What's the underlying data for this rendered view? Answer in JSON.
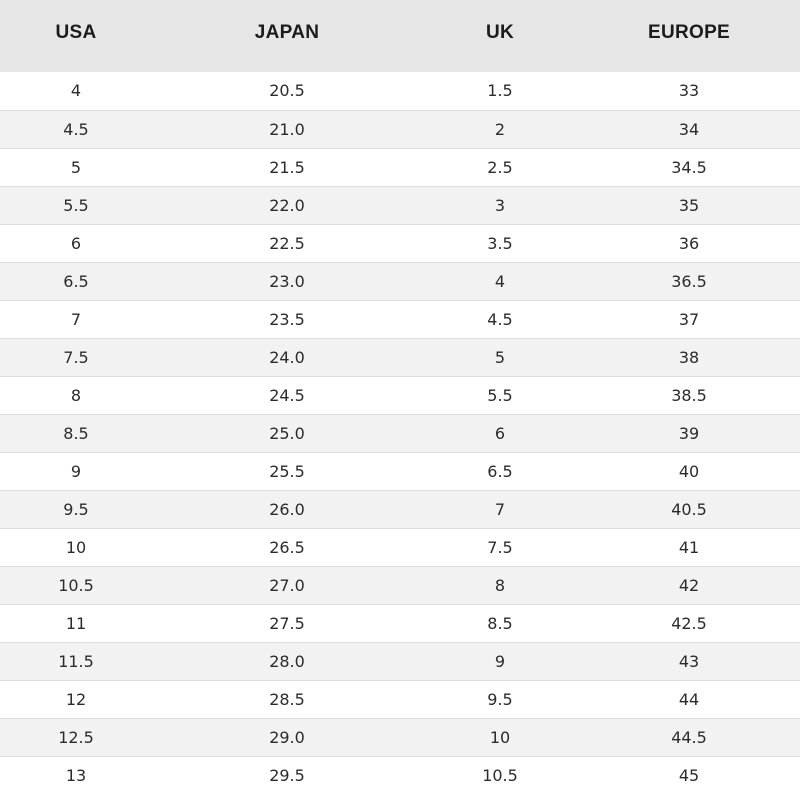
{
  "table": {
    "headers": [
      "USA",
      "JAPAN",
      "UK",
      "EUROPE"
    ],
    "rows": [
      [
        "4",
        "20.5",
        "1.5",
        "33"
      ],
      [
        "4.5",
        "21.0",
        "2",
        "34"
      ],
      [
        "5",
        "21.5",
        "2.5",
        "34.5"
      ],
      [
        "5.5",
        "22.0",
        "3",
        "35"
      ],
      [
        "6",
        "22.5",
        "3.5",
        "36"
      ],
      [
        "6.5",
        "23.0",
        "4",
        "36.5"
      ],
      [
        "7",
        "23.5",
        "4.5",
        "37"
      ],
      [
        "7.5",
        "24.0",
        "5",
        "38"
      ],
      [
        "8",
        "24.5",
        "5.5",
        "38.5"
      ],
      [
        "8.5",
        "25.0",
        "6",
        "39"
      ],
      [
        "9",
        "25.5",
        "6.5",
        "40"
      ],
      [
        "9.5",
        "26.0",
        "7",
        "40.5"
      ],
      [
        "10",
        "26.5",
        "7.5",
        "41"
      ],
      [
        "10.5",
        "27.0",
        "8",
        "42"
      ],
      [
        "11",
        "27.5",
        "8.5",
        "42.5"
      ],
      [
        "11.5",
        "28.0",
        "9",
        "43"
      ],
      [
        "12",
        "28.5",
        "9.5",
        "44"
      ],
      [
        "12.5",
        "29.0",
        "10",
        "44.5"
      ],
      [
        "13",
        "29.5",
        "10.5",
        "45"
      ]
    ]
  },
  "colors": {
    "header_background": "#e6e6e6",
    "stripe_background": "#f2f2f2",
    "text": "#2b2b2b"
  }
}
